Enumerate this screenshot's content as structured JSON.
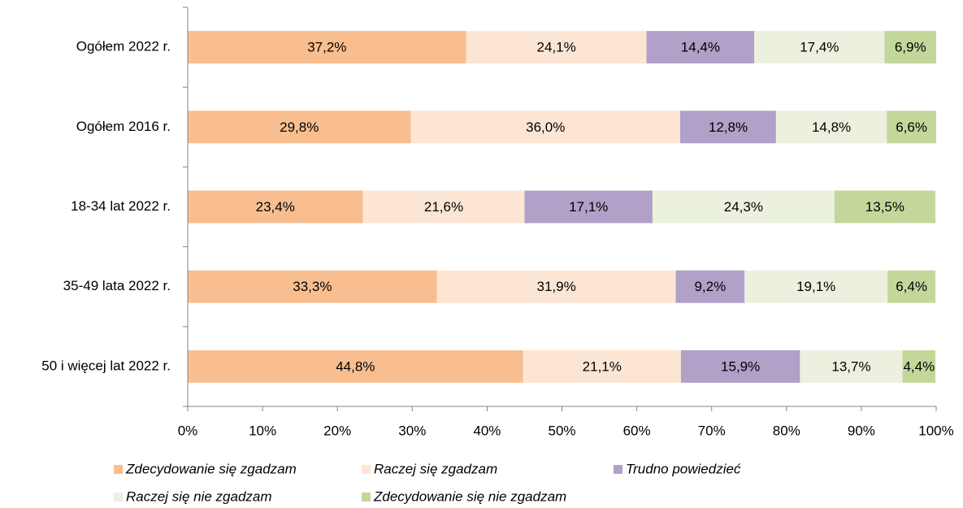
{
  "chart_data": {
    "type": "stacked_bar_horizontal",
    "categories": [
      "Ogółem 2022 r.",
      "Ogółem 2016 r.",
      "18-34 lat 2022 r.",
      "35-49 lata 2022 r.",
      "50 i więcej lat 2022 r."
    ],
    "series": [
      {
        "name": "Zdecydowanie się zgadzam",
        "color": "#f9be8f",
        "values": [
          37.2,
          29.8,
          23.4,
          33.3,
          44.8
        ],
        "value_labels": [
          "37,2%",
          "29,8%",
          "23,4%",
          "33,3%",
          "44,8%"
        ]
      },
      {
        "name": "Raczej się zgadzam",
        "color": "#fde5d4",
        "values": [
          24.1,
          36.0,
          21.6,
          31.9,
          21.1
        ],
        "value_labels": [
          "24,1%",
          "36,0%",
          "21,6%",
          "31,9%",
          "21,1%"
        ]
      },
      {
        "name": "Trudno powiedzieć",
        "color": "#b1a0c7",
        "values": [
          14.4,
          12.8,
          17.1,
          9.2,
          15.9
        ],
        "value_labels": [
          "14,4%",
          "12,8%",
          "17,1%",
          "9,2%",
          "15,9%"
        ]
      },
      {
        "name": "Raczej się nie zgadzam",
        "color": "#ebf1de",
        "values": [
          17.4,
          14.8,
          24.3,
          19.1,
          13.7
        ],
        "value_labels": [
          "17,4%",
          "14,8%",
          "24,3%",
          "19,1%",
          "13,7%"
        ]
      },
      {
        "name": "Zdecydowanie się nie zgadzam",
        "color": "#c4d79b",
        "values": [
          6.9,
          6.6,
          13.5,
          6.4,
          4.4
        ],
        "value_labels": [
          "6,9%",
          "6,6%",
          "13,5%",
          "6,4%",
          "4,4%"
        ]
      }
    ],
    "xlim": [
      0,
      100
    ],
    "xticks": [
      {
        "value": 0,
        "label": "0%"
      },
      {
        "value": 10,
        "label": "10%"
      },
      {
        "value": 20,
        "label": "20%"
      },
      {
        "value": 30,
        "label": "30%"
      },
      {
        "value": 40,
        "label": "40%"
      },
      {
        "value": 50,
        "label": "50%"
      },
      {
        "value": 60,
        "label": "60%"
      },
      {
        "value": 70,
        "label": "70%"
      },
      {
        "value": 80,
        "label": "80%"
      },
      {
        "value": 90,
        "label": "90%"
      },
      {
        "value": 100,
        "label": "100%"
      }
    ],
    "legend": "bottom"
  }
}
